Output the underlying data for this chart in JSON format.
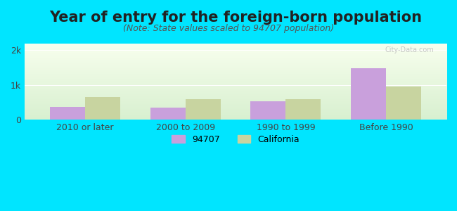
{
  "title": "Year of entry for the foreign-born population",
  "subtitle": "(Note: State values scaled to 94707 population)",
  "categories": [
    "2010 or later",
    "2000 to 2009",
    "1990 to 1999",
    "Before 1990"
  ],
  "values_94707": [
    370,
    355,
    530,
    1480
  ],
  "values_california": [
    650,
    590,
    590,
    960
  ],
  "bar_color_94707": "#c9a0dc",
  "bar_color_california": "#c8d4a0",
  "background_color": "#00e5ff",
  "gradient_top": "#d8f0d0",
  "gradient_bottom": "#f8ffee",
  "ylim": [
    0,
    2200
  ],
  "yticks": [
    0,
    1000,
    2000
  ],
  "ytick_labels": [
    "0",
    "1k",
    "2k"
  ],
  "bar_width": 0.35,
  "legend_label_94707": "94707",
  "legend_label_california": "California",
  "title_fontsize": 15,
  "subtitle_fontsize": 9,
  "watermark": "City-Data.com"
}
